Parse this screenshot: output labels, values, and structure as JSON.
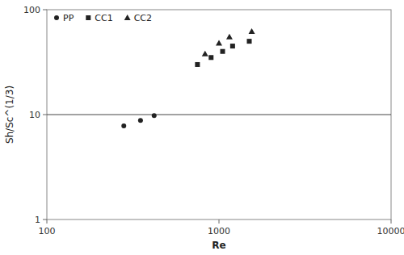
{
  "chart_data": {
    "type": "scatter",
    "xlabel": "Re",
    "ylabel": "Sh/Sc^(1/3)",
    "log": true,
    "grid": false,
    "legend": "upper left",
    "xlim": [
      100,
      10000
    ],
    "ylim": [
      1,
      100
    ],
    "xticks": [
      100,
      1000,
      10000
    ],
    "yticks": [
      1,
      10,
      100
    ],
    "hline": 10,
    "series": [
      {
        "name": "PP",
        "marker": "circle",
        "color": "#222222",
        "x": [
          280,
          350,
          420
        ],
        "values": [
          7.8,
          8.8,
          9.8
        ]
      },
      {
        "name": "CC1",
        "marker": "square",
        "color": "#222222",
        "x": [
          750,
          900,
          1050,
          1200,
          1500
        ],
        "values": [
          30,
          35,
          40,
          45,
          50
        ]
      },
      {
        "name": "CC2",
        "marker": "triangle",
        "color": "#222222",
        "x": [
          830,
          1000,
          1150,
          1550
        ],
        "values": [
          38,
          48,
          55,
          62
        ]
      }
    ]
  }
}
